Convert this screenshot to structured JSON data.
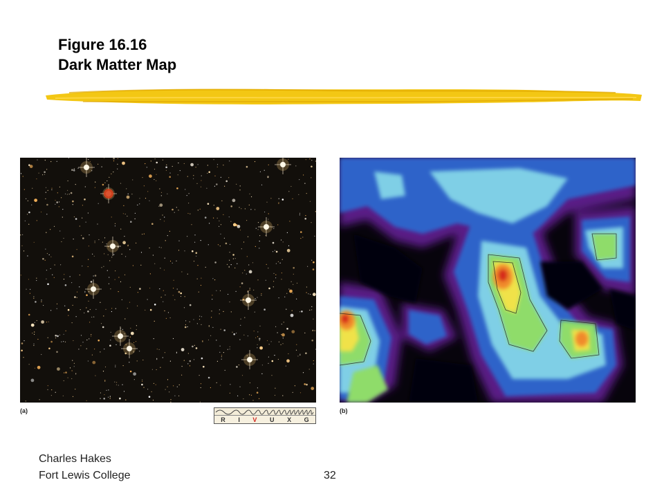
{
  "slide": {
    "title_line1": "Figure 16.16",
    "title_line2": "Dark Matter Map",
    "underline_color": "#f2c200"
  },
  "figure": {
    "panel_a": {
      "label": "(a)",
      "image": "optical-star-field"
    },
    "panel_b": {
      "label": "(b)",
      "image": "dark-matter-density-contour-map"
    },
    "spectrum_bar": {
      "bands": [
        "R",
        "I",
        "V",
        "U",
        "X",
        "G"
      ],
      "highlighted": "V",
      "highlight_color": "#d2231c"
    }
  },
  "footer": {
    "author": "Charles Hakes",
    "institution": "Fort Lewis College",
    "page_number": "32"
  }
}
